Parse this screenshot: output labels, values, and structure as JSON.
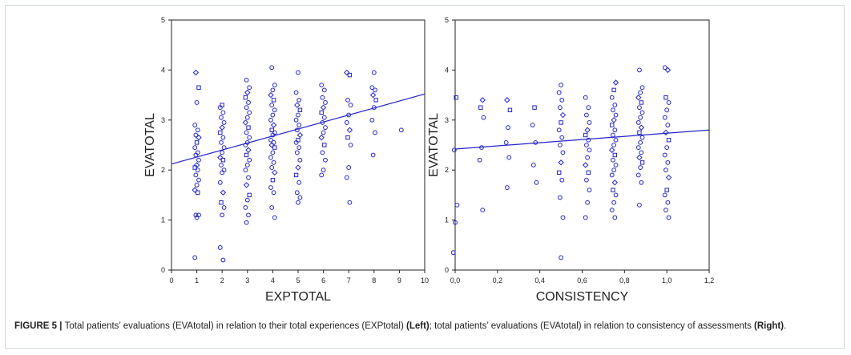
{
  "chart_data": [
    {
      "type": "scatter",
      "title": "",
      "xlabel": "EXPTOTAL",
      "ylabel": "EVATOTAL",
      "xlim": [
        0,
        10
      ],
      "ylim": [
        0,
        5
      ],
      "xticks": [
        "0",
        "1",
        "2",
        "3",
        "4",
        "5",
        "6",
        "7",
        "8",
        "9",
        "10"
      ],
      "yticks": [
        "0",
        "1",
        "2",
        "3",
        "4",
        "5"
      ],
      "trend_line": {
        "x": [
          0,
          10
        ],
        "y": [
          2.12,
          3.52
        ]
      },
      "point_color": "#2424c8",
      "groups": [
        {
          "x": 1,
          "y": [
            0.25,
            1.05,
            1.1,
            1.1,
            1.55,
            1.6,
            1.7,
            1.8,
            1.9,
            2.0,
            2.05,
            2.1,
            2.2,
            2.3,
            2.35,
            2.45,
            2.55,
            2.65,
            2.7,
            2.8,
            2.9,
            3.35,
            3.65,
            3.95
          ]
        },
        {
          "x": 2,
          "y": [
            0.2,
            0.45,
            1.1,
            1.25,
            1.35,
            1.55,
            1.75,
            1.95,
            2.0,
            2.1,
            2.2,
            2.25,
            2.35,
            2.45,
            2.55,
            2.65,
            2.75,
            2.85,
            2.95,
            3.05,
            3.15,
            3.25,
            3.3
          ]
        },
        {
          "x": 3,
          "y": [
            0.95,
            1.1,
            1.25,
            1.4,
            1.5,
            1.7,
            1.85,
            2.0,
            2.1,
            2.2,
            2.3,
            2.4,
            2.5,
            2.55,
            2.65,
            2.75,
            2.85,
            2.95,
            3.05,
            3.15,
            3.25,
            3.35,
            3.45,
            3.55,
            3.65,
            3.8
          ]
        },
        {
          "x": 4,
          "y": [
            1.05,
            1.25,
            1.55,
            1.65,
            1.8,
            1.95,
            2.05,
            2.15,
            2.25,
            2.35,
            2.45,
            2.5,
            2.55,
            2.6,
            2.7,
            2.75,
            2.8,
            2.9,
            3.0,
            3.1,
            3.2,
            3.3,
            3.4,
            3.5,
            3.6,
            3.7,
            4.05
          ]
        },
        {
          "x": 5,
          "y": [
            1.35,
            1.45,
            1.55,
            1.75,
            1.9,
            2.05,
            2.2,
            2.35,
            2.45,
            2.55,
            2.6,
            2.7,
            2.8,
            2.9,
            3.0,
            3.1,
            3.2,
            3.3,
            3.4,
            3.55,
            3.95
          ]
        },
        {
          "x": 6,
          "y": [
            1.9,
            2.0,
            2.2,
            2.35,
            2.5,
            2.65,
            2.75,
            2.85,
            2.95,
            3.05,
            3.15,
            3.25,
            3.35,
            3.45,
            3.6,
            3.7
          ]
        },
        {
          "x": 7,
          "y": [
            1.35,
            1.85,
            2.05,
            2.5,
            2.65,
            2.8,
            2.95,
            3.1,
            3.3,
            3.4,
            3.9,
            3.95
          ]
        },
        {
          "x": 8,
          "y": [
            2.3,
            2.75,
            3.0,
            3.25,
            3.4,
            3.5,
            3.6,
            3.65,
            3.95
          ]
        },
        {
          "x": 9,
          "y": [
            2.8
          ]
        }
      ]
    },
    {
      "type": "scatter",
      "title": "",
      "xlabel": "CONSISTENCY",
      "ylabel": "EVATOTAL",
      "xlim": [
        0,
        1.2
      ],
      "ylim": [
        0,
        5
      ],
      "xticks": [
        "0,0",
        "0,2",
        "0,4",
        "0,6",
        "0,8",
        "1,0",
        "1,2"
      ],
      "yticks": [
        "0",
        "1",
        "2",
        "3",
        "4",
        "5"
      ],
      "trend_line": {
        "x": [
          0,
          1.2
        ],
        "y": [
          2.42,
          2.8
        ]
      },
      "point_color": "#2424c8",
      "groups": [
        {
          "x": 0.0,
          "y": [
            0.35,
            0.95,
            1.3,
            2.4,
            3.45
          ]
        },
        {
          "x": 0.125,
          "y": [
            1.2,
            2.2,
            2.45,
            3.05,
            3.25,
            3.4
          ]
        },
        {
          "x": 0.25,
          "y": [
            1.65,
            2.25,
            2.55,
            2.85,
            3.2,
            3.4
          ]
        },
        {
          "x": 0.375,
          "y": [
            1.75,
            2.1,
            2.55,
            2.9,
            3.25
          ]
        },
        {
          "x": 0.5,
          "y": [
            0.25,
            1.05,
            1.45,
            1.8,
            1.95,
            2.15,
            2.35,
            2.5,
            2.65,
            2.8,
            2.95,
            3.1,
            3.25,
            3.4,
            3.55,
            3.7
          ]
        },
        {
          "x": 0.625,
          "y": [
            1.05,
            1.35,
            1.6,
            1.8,
            1.95,
            2.1,
            2.25,
            2.4,
            2.5,
            2.6,
            2.7,
            2.8,
            2.95,
            3.1,
            3.25,
            3.45
          ]
        },
        {
          "x": 0.75,
          "y": [
            1.05,
            1.2,
            1.35,
            1.5,
            1.6,
            1.75,
            1.9,
            2.0,
            2.1,
            2.2,
            2.3,
            2.4,
            2.5,
            2.6,
            2.7,
            2.8,
            2.9,
            3.0,
            3.1,
            3.2,
            3.3,
            3.45,
            3.6,
            3.75
          ]
        },
        {
          "x": 0.875,
          "y": [
            1.3,
            1.75,
            1.9,
            2.05,
            2.15,
            2.25,
            2.35,
            2.45,
            2.55,
            2.65,
            2.75,
            2.85,
            2.95,
            3.05,
            3.15,
            3.25,
            3.35,
            3.45,
            3.55,
            3.65,
            4.0
          ]
        },
        {
          "x": 1.0,
          "y": [
            1.05,
            1.2,
            1.35,
            1.5,
            1.6,
            1.85,
            2.0,
            2.15,
            2.3,
            2.45,
            2.6,
            2.75,
            2.9,
            3.05,
            3.2,
            3.35,
            3.45,
            4.0,
            4.05
          ]
        }
      ]
    }
  ],
  "caption": {
    "label": "FIGURE 5 | ",
    "text1": "Total patients’ evaluations (EVAtotal) in relation to their total experiences (EXPtotal) ",
    "left": "(Left)",
    "text2": "; total patients’ evaluations (EVAtotal) in relation to consistency of assessments ",
    "right": "(Right)",
    "text3": "."
  }
}
